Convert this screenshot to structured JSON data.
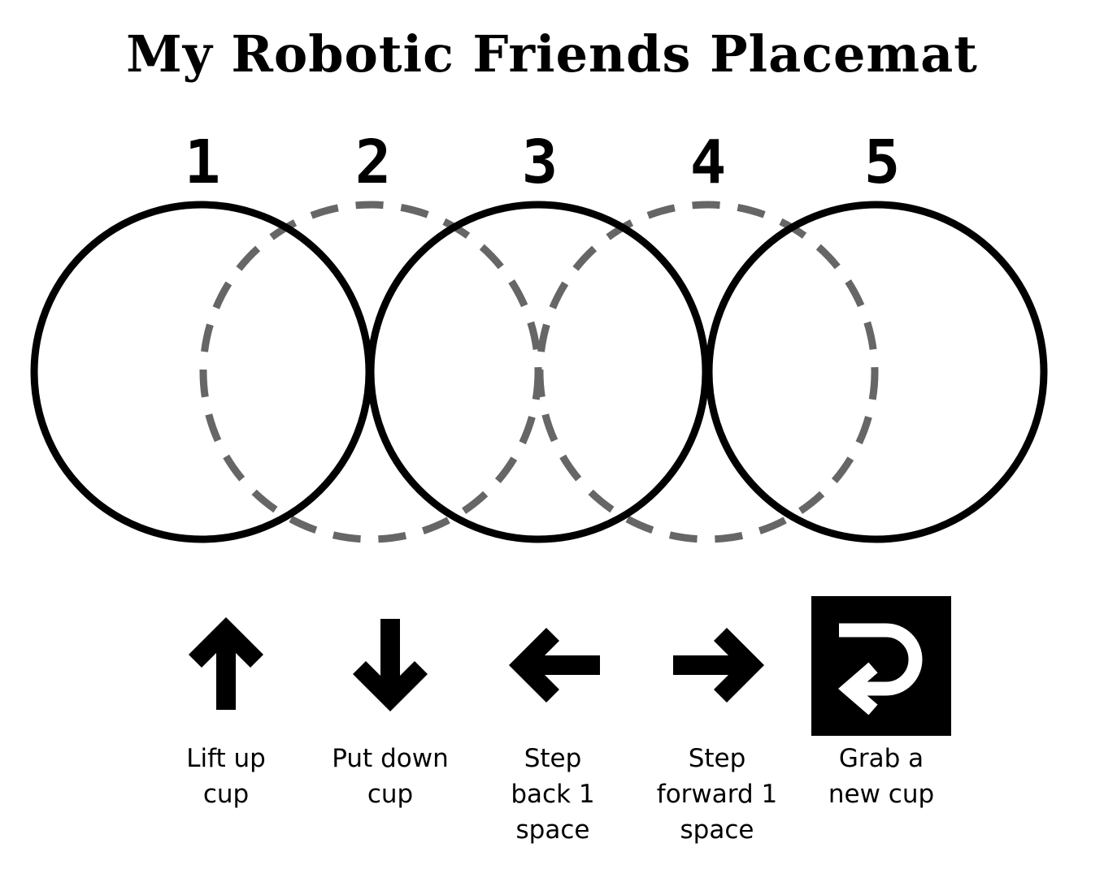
{
  "title": "My Robotic Friends Placemat",
  "spots": [
    {
      "number": "1",
      "style": "solid"
    },
    {
      "number": "2",
      "style": "dashed"
    },
    {
      "number": "3",
      "style": "solid"
    },
    {
      "number": "4",
      "style": "dashed"
    },
    {
      "number": "5",
      "style": "solid"
    }
  ],
  "colors": {
    "solid_circle": "#000000",
    "dashed_circle": "#666666",
    "icon": "#000000",
    "icon_inverse": "#ffffff"
  },
  "legend": [
    {
      "icon": "arrow-up-icon",
      "label": "Lift up\ncup"
    },
    {
      "icon": "arrow-down-icon",
      "label": "Put down\ncup"
    },
    {
      "icon": "arrow-left-icon",
      "label": "Step\nback 1\nspace"
    },
    {
      "icon": "arrow-right-icon",
      "label": "Step\nforward 1\nspace"
    },
    {
      "icon": "return-arrow-icon",
      "label": "Grab a\nnew cup"
    }
  ]
}
